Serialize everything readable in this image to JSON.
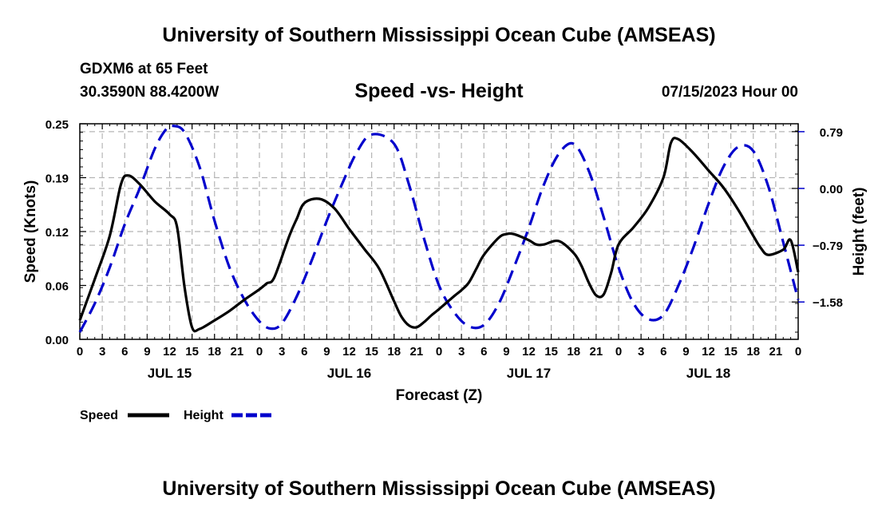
{
  "header": {
    "title": "University of Southern Mississippi Ocean Cube (AMSEAS)",
    "station": "GDXM6 at 65 Feet",
    "coords": "30.3590N  88.4200W",
    "subtitle": "Speed -vs- Height",
    "datetime": "07/15/2023 Hour 00"
  },
  "footer": {
    "title": "University of Southern Mississippi Ocean Cube (AMSEAS)"
  },
  "chart_data": {
    "type": "line",
    "title": "Speed -vs- Height",
    "xlabel": "Forecast (Z)",
    "ylabel": "Speed (Knots)",
    "y2label": "Height (feet)",
    "x_ticks": [
      "0",
      "3",
      "6",
      "9",
      "12",
      "15",
      "18",
      "21",
      "0",
      "3",
      "6",
      "9",
      "12",
      "15",
      "18",
      "21",
      "0",
      "3",
      "6",
      "9",
      "12",
      "15",
      "18",
      "21",
      "0",
      "3",
      "6",
      "9",
      "12",
      "15",
      "18",
      "21",
      "0"
    ],
    "x_range_hours": [
      0,
      96
    ],
    "day_labels": [
      {
        "label": "JUL 15",
        "hour": 12
      },
      {
        "label": "JUL 16",
        "hour": 36
      },
      {
        "label": "JUL 17",
        "hour": 60
      },
      {
        "label": "JUL 18",
        "hour": 84
      }
    ],
    "ylim": [
      0,
      0.25
    ],
    "y_ticks": [
      "0.00",
      "0.06",
      "0.12",
      "0.19",
      "0.25"
    ],
    "y2lim": [
      -2.1,
      0.9
    ],
    "y2_ticks": [
      "0.79",
      "0.00",
      "−0.79",
      "−1.58"
    ],
    "grid": true,
    "legend": "bottom-left",
    "series": [
      {
        "name": "Speed",
        "axis": "left",
        "color": "#000000",
        "dash": "solid",
        "x": [
          0,
          2,
          4,
          5.5,
          6.5,
          8,
          10,
          12,
          13,
          14,
          15,
          16,
          18,
          20,
          22,
          24,
          25,
          26,
          28,
          29,
          30,
          32,
          34,
          36,
          38,
          40,
          42,
          43,
          44,
          45,
          46,
          47,
          48,
          50,
          51,
          52,
          53,
          54,
          56,
          57,
          58,
          60,
          61,
          62,
          64,
          66,
          67,
          68,
          69,
          70,
          71,
          72,
          74,
          76,
          78,
          79,
          80,
          82,
          84,
          86,
          88,
          90,
          91,
          92,
          94,
          95,
          96
        ],
        "values": [
          0.022,
          0.07,
          0.12,
          0.18,
          0.19,
          0.18,
          0.16,
          0.145,
          0.13,
          0.06,
          0.014,
          0.012,
          0.022,
          0.033,
          0.046,
          0.058,
          0.065,
          0.072,
          0.12,
          0.14,
          0.158,
          0.163,
          0.152,
          0.128,
          0.105,
          0.082,
          0.044,
          0.026,
          0.016,
          0.014,
          0.02,
          0.028,
          0.035,
          0.05,
          0.057,
          0.066,
          0.082,
          0.098,
          0.118,
          0.122,
          0.122,
          0.115,
          0.11,
          0.11,
          0.114,
          0.1,
          0.086,
          0.066,
          0.051,
          0.052,
          0.077,
          0.11,
          0.13,
          0.153,
          0.188,
          0.228,
          0.232,
          0.216,
          0.196,
          0.176,
          0.15,
          0.12,
          0.106,
          0.098,
          0.104,
          0.115,
          0.078
        ]
      },
      {
        "name": "Height",
        "axis": "right",
        "color": "#0000cc",
        "dash": "dashed",
        "x": [
          0,
          2,
          4,
          6,
          8,
          10,
          11.5,
          12.5,
          14,
          16,
          18,
          20,
          22,
          24,
          25.5,
          27,
          29,
          31,
          33,
          35,
          37,
          39,
          42,
          44,
          46,
          48,
          50,
          52,
          54,
          56,
          58,
          60,
          62,
          64,
          66,
          68,
          70,
          72,
          74,
          76,
          78,
          80,
          82,
          84,
          86,
          88,
          90,
          92,
          94,
          96
        ],
        "values": [
          -2.0,
          -1.6,
          -1.1,
          -0.5,
          0.0,
          0.55,
          0.82,
          0.87,
          0.78,
          0.3,
          -0.45,
          -1.1,
          -1.55,
          -1.85,
          -1.95,
          -1.88,
          -1.5,
          -1.0,
          -0.45,
          0.05,
          0.5,
          0.75,
          0.62,
          0.05,
          -0.7,
          -1.35,
          -1.72,
          -1.92,
          -1.9,
          -1.6,
          -1.1,
          -0.55,
          0.05,
          0.48,
          0.62,
          0.25,
          -0.4,
          -1.1,
          -1.6,
          -1.82,
          -1.76,
          -1.35,
          -0.82,
          -0.22,
          0.3,
          0.58,
          0.52,
          0.03,
          -0.75,
          -1.55
        ]
      }
    ]
  }
}
